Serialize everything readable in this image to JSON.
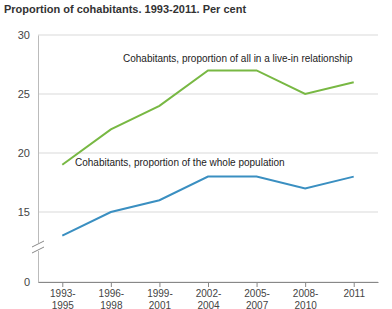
{
  "chart_data": {
    "type": "line",
    "title": "Proportion of cohabitants. 1993-2011. Per cent",
    "categories": [
      "1993-1995",
      "1996-1998",
      "1999-2001",
      "2002-2004",
      "2005-2007",
      "2008-2010",
      "2011"
    ],
    "series": [
      {
        "name": "Cohabitants, proportion of all in a live-in relationship",
        "color": "#78b843",
        "values": [
          19,
          22,
          24,
          27,
          27,
          25,
          26
        ]
      },
      {
        "name": "Cohabitants, proportion of the whole population",
        "color": "#3a8fc1",
        "values": [
          13,
          15,
          16,
          18,
          18,
          17,
          18
        ]
      }
    ],
    "ylim": [
      0,
      30
    ],
    "yticks": [
      0,
      15,
      20,
      25,
      30
    ],
    "grid": true
  }
}
